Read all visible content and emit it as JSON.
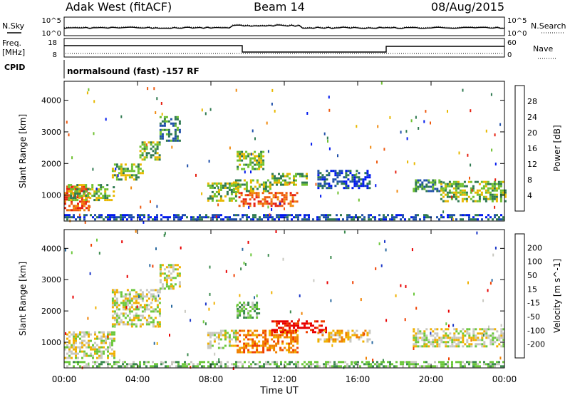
{
  "header": {
    "radar": "Adak West (fitACF)",
    "beam": "Beam 14",
    "date": "08/Aug/2015"
  },
  "strip_labels": {
    "nsky": "N.Sky",
    "nsearch": "N.Search",
    "freq_line1": "Freq.",
    "freq_line2": "[MHz]",
    "nave": "Nave",
    "cpid": "CPID",
    "cpid_text": "normalsound (fast) -157 RF",
    "noise_left_ticks": [
      "10^5",
      "10^0"
    ],
    "noise_right_ticks": [
      "10^5",
      "10^0"
    ],
    "freq_ticks": [
      "18",
      "8"
    ],
    "nave_ticks": [
      "60",
      "0"
    ]
  },
  "x_axis": {
    "label": "Time UT",
    "ticks": [
      "00:00",
      "04:00",
      "08:00",
      "12:00",
      "16:00",
      "20:00",
      "00:00"
    ]
  },
  "chart_data": [
    {
      "type": "heatmap",
      "name": "power",
      "ylabel": "Slant Range [km]",
      "yticks": [
        "1000",
        "2000",
        "3000",
        "4000"
      ],
      "ylim": [
        180,
        4600
      ],
      "xlim_hours": [
        0,
        24
      ],
      "colorbar_label": "Power [dB]",
      "colorbar_ticks": [
        "4",
        "8",
        "12",
        "16",
        "20",
        "24",
        "28"
      ],
      "colorbar_colors": [
        "#0018ee",
        "#1f4faa",
        "#2f7a50",
        "#6fc030",
        "#e8b800",
        "#f08a10",
        "#ee5a10",
        "#e62010"
      ],
      "bands": [
        {
          "t0": 0.0,
          "t1": 1.3,
          "r0": 500,
          "r1": 1300,
          "level": 6
        },
        {
          "t0": 0.2,
          "t1": 2.7,
          "r0": 850,
          "r1": 1350,
          "level": 3
        },
        {
          "t0": 2.6,
          "t1": 4.3,
          "r0": 1500,
          "r1": 2000,
          "level": 3
        },
        {
          "t0": 4.1,
          "t1": 5.2,
          "r0": 2100,
          "r1": 2700,
          "level": 3
        },
        {
          "t0": 5.2,
          "t1": 6.3,
          "r0": 2700,
          "r1": 3500,
          "level": 2
        },
        {
          "t0": 7.8,
          "t1": 9.5,
          "r0": 800,
          "r1": 1400,
          "level": 3
        },
        {
          "t0": 9.5,
          "t1": 12.7,
          "r0": 650,
          "r1": 1100,
          "level": 6
        },
        {
          "t0": 9.2,
          "t1": 11.2,
          "r0": 1150,
          "r1": 1500,
          "level": 3
        },
        {
          "t0": 9.4,
          "t1": 10.8,
          "r0": 1800,
          "r1": 2400,
          "level": 3
        },
        {
          "t0": 11.3,
          "t1": 13.2,
          "r0": 1350,
          "r1": 1700,
          "level": 3
        },
        {
          "t0": 13.8,
          "t1": 16.6,
          "r0": 1200,
          "r1": 1800,
          "level": 1
        },
        {
          "t0": 19.0,
          "t1": 20.8,
          "r0": 1100,
          "r1": 1500,
          "level": 2
        },
        {
          "t0": 20.5,
          "t1": 24.0,
          "r0": 800,
          "r1": 1450,
          "level": 3
        },
        {
          "t0": 0.0,
          "t1": 24.0,
          "r0": 200,
          "r1": 400,
          "level": 1
        }
      ]
    },
    {
      "type": "heatmap",
      "name": "velocity",
      "ylabel": "Slant Range [km]",
      "yticks": [
        "1000",
        "2000",
        "3000",
        "4000"
      ],
      "ylim": [
        180,
        4600
      ],
      "xlim_hours": [
        0,
        24
      ],
      "colorbar_label": "Velocity [m s^-1]",
      "colorbar_ticks": [
        "200",
        "100",
        "50",
        "15",
        "-15",
        "-50",
        "-100",
        "-200"
      ],
      "colorbar_colors": [
        "#1a36c8",
        "#2a6aa0",
        "#3b8a4e",
        "#6cc83c",
        "#c8c8c0",
        "#f0b000",
        "#f08000",
        "#f04000",
        "#e80000"
      ],
      "bands": [
        {
          "t0": 0.0,
          "t1": 2.7,
          "r0": 500,
          "r1": 1350,
          "level": 4
        },
        {
          "t0": 2.6,
          "t1": 5.2,
          "r0": 1500,
          "r1": 2700,
          "level": 4
        },
        {
          "t0": 5.2,
          "t1": 6.3,
          "r0": 2700,
          "r1": 3500,
          "level": 4
        },
        {
          "t0": 7.8,
          "t1": 9.4,
          "r0": 800,
          "r1": 1400,
          "level": 4
        },
        {
          "t0": 9.4,
          "t1": 12.7,
          "r0": 650,
          "r1": 1400,
          "level": 6
        },
        {
          "t0": 9.4,
          "t1": 10.6,
          "r0": 1800,
          "r1": 2300,
          "level": 3
        },
        {
          "t0": 11.3,
          "t1": 14.3,
          "r0": 1350,
          "r1": 1700,
          "level": 8
        },
        {
          "t0": 13.8,
          "t1": 16.6,
          "r0": 1050,
          "r1": 1400,
          "level": 5
        },
        {
          "t0": 19.0,
          "t1": 24.0,
          "r0": 900,
          "r1": 1450,
          "level": 4
        },
        {
          "t0": 0.0,
          "t1": 24.0,
          "r0": 200,
          "r1": 400,
          "level": 3
        }
      ]
    }
  ]
}
